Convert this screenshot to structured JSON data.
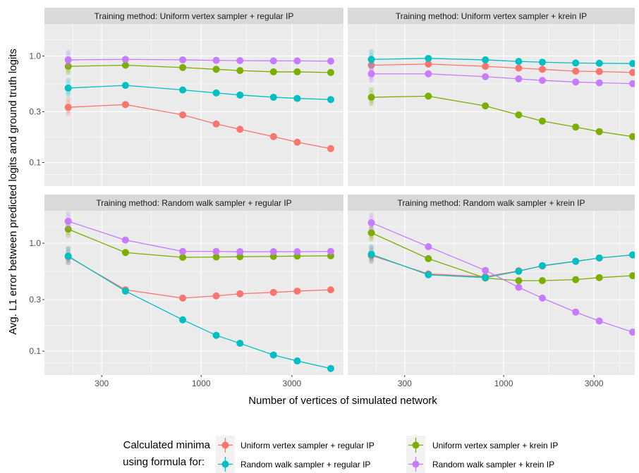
{
  "chart_data": {
    "type": "line",
    "xlabel": "Number of vertices of simulated network",
    "ylabel": "Avg. L1 error between predicted logits and ground truth logits",
    "x_scale": "log10",
    "y_scale": "log10",
    "xlim": [
      150,
      5600
    ],
    "ylim": [
      0.06,
      2.0
    ],
    "x_ticks": [
      300,
      1000,
      3000
    ],
    "x_tick_labels": [
      "300",
      "1000",
      "3000"
    ],
    "y_ticks": [
      0.1,
      0.3,
      1.0
    ],
    "y_tick_labels": [
      "0.1",
      "0.3",
      "1.0"
    ],
    "x": [
      200,
      400,
      800,
      1200,
      1600,
      2400,
      3200,
      4800
    ],
    "grid": true,
    "legend": {
      "position": "bottom",
      "title_line1": "Calculated minima",
      "title_line2": "using formula for:"
    },
    "series_meta": [
      {
        "name": "Uniform vertex sampler + regular IP",
        "color": "#F8766D"
      },
      {
        "name": "Uniform vertex sampler + krein IP",
        "color": "#7CAE00"
      },
      {
        "name": "Random walk sampler + regular IP",
        "color": "#00BFC4"
      },
      {
        "name": "Random walk sampler + krein IP",
        "color": "#C77CFF"
      }
    ],
    "panels": [
      {
        "title": "Training method: Uniform vertex sampler + regular IP",
        "series": [
          {
            "values": [
              0.33,
              0.35,
              0.28,
              0.23,
              0.205,
              0.175,
              0.155,
              0.135
            ]
          },
          {
            "values": [
              0.8,
              0.82,
              0.78,
              0.75,
              0.73,
              0.71,
              0.71,
              0.7
            ]
          },
          {
            "values": [
              0.5,
              0.53,
              0.48,
              0.45,
              0.43,
              0.41,
              0.4,
              0.39
            ]
          },
          {
            "values": [
              0.92,
              0.93,
              0.92,
              0.91,
              0.905,
              0.9,
              0.9,
              0.895
            ]
          }
        ]
      },
      {
        "title": "Training method: Uniform vertex sampler + krein IP",
        "series": [
          {
            "values": [
              0.82,
              0.84,
              0.8,
              0.77,
              0.75,
              0.72,
              0.715,
              0.7
            ]
          },
          {
            "values": [
              0.41,
              0.42,
              0.34,
              0.28,
              0.245,
              0.215,
              0.195,
              0.175
            ]
          },
          {
            "values": [
              0.93,
              0.95,
              0.92,
              0.89,
              0.875,
              0.86,
              0.855,
              0.85
            ]
          },
          {
            "values": [
              0.68,
              0.68,
              0.64,
              0.61,
              0.59,
              0.57,
              0.56,
              0.55
            ]
          }
        ]
      },
      {
        "title": "Training method: Random walk sampler + regular IP",
        "series": [
          {
            "values": [
              0.75,
              0.37,
              0.31,
              0.325,
              0.34,
              0.35,
              0.36,
              0.37
            ]
          },
          {
            "values": [
              1.35,
              0.82,
              0.74,
              0.745,
              0.75,
              0.755,
              0.76,
              0.765
            ]
          },
          {
            "values": [
              0.76,
              0.36,
              0.195,
              0.14,
              0.118,
              0.092,
              0.081,
              0.069
            ]
          },
          {
            "values": [
              1.6,
              1.07,
              0.84,
              0.84,
              0.835,
              0.835,
              0.835,
              0.84
            ]
          }
        ]
      },
      {
        "title": "Training method: Random walk sampler + krein IP",
        "series": [
          {
            "values": [
              0.77,
              0.52,
              0.49,
              0.555,
              0.615,
              0.68,
              0.73,
              0.78
            ]
          },
          {
            "values": [
              1.25,
              0.72,
              0.475,
              0.45,
              0.45,
              0.46,
              0.48,
              0.5
            ]
          },
          {
            "values": [
              0.79,
              0.51,
              0.48,
              0.55,
              0.62,
              0.68,
              0.73,
              0.78
            ]
          },
          {
            "values": [
              1.55,
              0.93,
              0.56,
              0.39,
              0.31,
              0.23,
              0.19,
              0.15
            ]
          }
        ]
      }
    ]
  }
}
